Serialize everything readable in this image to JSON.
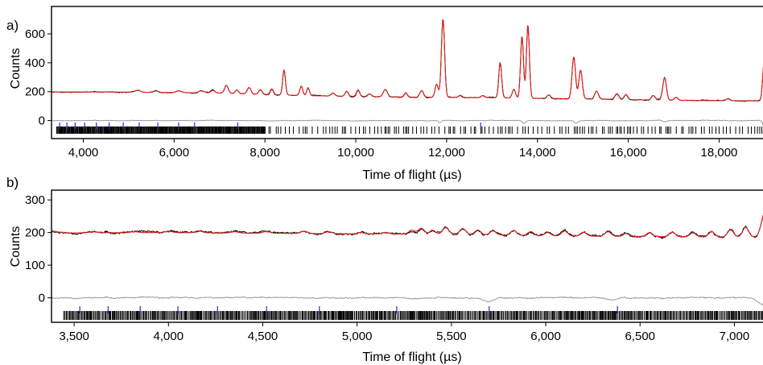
{
  "chart_data": [
    {
      "panel_label": "a)",
      "type": "line",
      "xlabel": "Time of flight (µs)",
      "ylabel": "Counts",
      "xlim": [
        3300,
        19250
      ],
      "ylim": [
        -125,
        790
      ],
      "xticks": [
        4000,
        6000,
        8000,
        10000,
        12000,
        14000,
        16000,
        18000
      ],
      "xtick_labels": [
        "4,000",
        "6,000",
        "8,000",
        "10,000",
        "12,000",
        "14,000",
        "16,000",
        "18,000"
      ],
      "yticks": [
        0,
        200,
        400,
        600
      ],
      "ytick_labels": [
        "0",
        "200",
        "400",
        "600"
      ],
      "grid": false,
      "series_colors": {
        "observed": "#000000",
        "calculated": "#e0201b",
        "difference": "#9a9a9a",
        "reflections": "#000000",
        "phase2_reflections": "#2b2bd6"
      },
      "baseline": [
        [
          3300,
          198
        ],
        [
          5000,
          197
        ],
        [
          7000,
          190
        ],
        [
          9000,
          172
        ],
        [
          11000,
          163
        ],
        [
          13000,
          158
        ],
        [
          15000,
          150
        ],
        [
          17000,
          140
        ],
        [
          19250,
          135
        ]
      ],
      "peaks": [
        [
          5200,
          12,
          60
        ],
        [
          5600,
          10,
          50
        ],
        [
          6100,
          12,
          60
        ],
        [
          6600,
          14,
          60
        ],
        [
          6850,
          18,
          45
        ],
        [
          7150,
          55,
          40
        ],
        [
          7380,
          25,
          35
        ],
        [
          7650,
          45,
          40
        ],
        [
          7900,
          30,
          40
        ],
        [
          8150,
          40,
          35
        ],
        [
          8420,
          175,
          30
        ],
        [
          8800,
          65,
          32
        ],
        [
          8950,
          55,
          30
        ],
        [
          9500,
          20,
          40
        ],
        [
          9800,
          35,
          35
        ],
        [
          10050,
          45,
          35
        ],
        [
          10300,
          18,
          40
        ],
        [
          10650,
          50,
          45
        ],
        [
          11100,
          30,
          35
        ],
        [
          11450,
          45,
          40
        ],
        [
          11780,
          90,
          35
        ],
        [
          11920,
          545,
          35
        ],
        [
          12300,
          15,
          40
        ],
        [
          12800,
          15,
          40
        ],
        [
          13180,
          245,
          32
        ],
        [
          13480,
          60,
          35
        ],
        [
          13660,
          430,
          32
        ],
        [
          13790,
          510,
          32
        ],
        [
          14250,
          25,
          40
        ],
        [
          14800,
          290,
          38
        ],
        [
          14950,
          200,
          38
        ],
        [
          15300,
          55,
          40
        ],
        [
          15750,
          40,
          45
        ],
        [
          15950,
          35,
          40
        ],
        [
          16550,
          30,
          40
        ],
        [
          16800,
          155,
          40
        ],
        [
          17050,
          20,
          40
        ],
        [
          18200,
          15,
          40
        ],
        [
          18990,
          265,
          32
        ],
        [
          19180,
          160,
          30
        ]
      ],
      "difference_dips": [
        [
          11850,
          -15,
          30
        ],
        [
          13700,
          -20,
          35
        ],
        [
          14850,
          -18,
          40
        ],
        [
          16800,
          -10,
          40
        ],
        [
          19000,
          -45,
          35
        ]
      ],
      "reflections_range": [
        3400,
        19200
      ],
      "reflections_dense_until": 8000,
      "phase2_reflections": [
        3480,
        3640,
        3820,
        4030,
        4290,
        4570,
        4880,
        5230,
        5640,
        6100,
        6450,
        7400,
        12750,
        18980
      ]
    },
    {
      "panel_label": "b)",
      "type": "line",
      "xlabel": "Time of flight (µs)",
      "ylabel": "Counts",
      "xlim": [
        3380,
        7220
      ],
      "ylim": [
        -75,
        330
      ],
      "xticks": [
        3500,
        4000,
        4500,
        5000,
        5500,
        6000,
        6500,
        7000
      ],
      "xtick_labels": [
        "3,500",
        "4,000",
        "4,500",
        "5,000",
        "5,500",
        "6,000",
        "6,500",
        "7,000"
      ],
      "yticks": [
        0,
        100,
        200,
        300
      ],
      "ytick_labels": [
        "0",
        "100",
        "200",
        "300"
      ],
      "grid": false,
      "series_colors": {
        "observed": "#000000",
        "calculated": "#e0201b",
        "difference": "#9a9a9a",
        "reflections": "#000000",
        "phase2_reflections": "#2b2bd6"
      },
      "baseline": [
        [
          3380,
          205
        ],
        [
          3450,
          199
        ],
        [
          4000,
          200
        ],
        [
          4500,
          198
        ],
        [
          5000,
          196
        ],
        [
          5500,
          195
        ],
        [
          6000,
          190
        ],
        [
          6500,
          188
        ],
        [
          7000,
          186
        ],
        [
          7220,
          186
        ]
      ],
      "peaks": [
        [
          3600,
          3,
          20
        ],
        [
          3820,
          3,
          20
        ],
        [
          4000,
          4,
          20
        ],
        [
          4160,
          6,
          18
        ],
        [
          4350,
          4,
          20
        ],
        [
          4520,
          5,
          20
        ],
        [
          4720,
          7,
          18
        ],
        [
          4850,
          6,
          18
        ],
        [
          5020,
          4,
          18
        ],
        [
          5150,
          5,
          18
        ],
        [
          5290,
          12,
          16
        ],
        [
          5340,
          18,
          16
        ],
        [
          5400,
          12,
          15
        ],
        [
          5470,
          20,
          16
        ],
        [
          5560,
          18,
          16
        ],
        [
          5640,
          14,
          16
        ],
        [
          5720,
          12,
          16
        ],
        [
          5830,
          15,
          16
        ],
        [
          5920,
          12,
          16
        ],
        [
          6010,
          10,
          16
        ],
        [
          6100,
          15,
          16
        ],
        [
          6200,
          12,
          16
        ],
        [
          6330,
          14,
          16
        ],
        [
          6430,
          10,
          16
        ],
        [
          6550,
          12,
          16
        ],
        [
          6670,
          14,
          16
        ],
        [
          6780,
          12,
          16
        ],
        [
          6880,
          16,
          16
        ],
        [
          6980,
          22,
          16
        ],
        [
          7060,
          30,
          16
        ],
        [
          7160,
          70,
          18
        ]
      ],
      "difference_dips": [
        [
          5700,
          -12,
          25
        ],
        [
          6350,
          -8,
          25
        ],
        [
          7150,
          -20,
          25
        ]
      ],
      "reflections_range": [
        3440,
        7220
      ],
      "reflections_dense_until": 7220,
      "phase2_reflections": [
        3530,
        3680,
        3850,
        4050,
        4260,
        4520,
        4800,
        5210,
        5700,
        6380
      ]
    }
  ]
}
